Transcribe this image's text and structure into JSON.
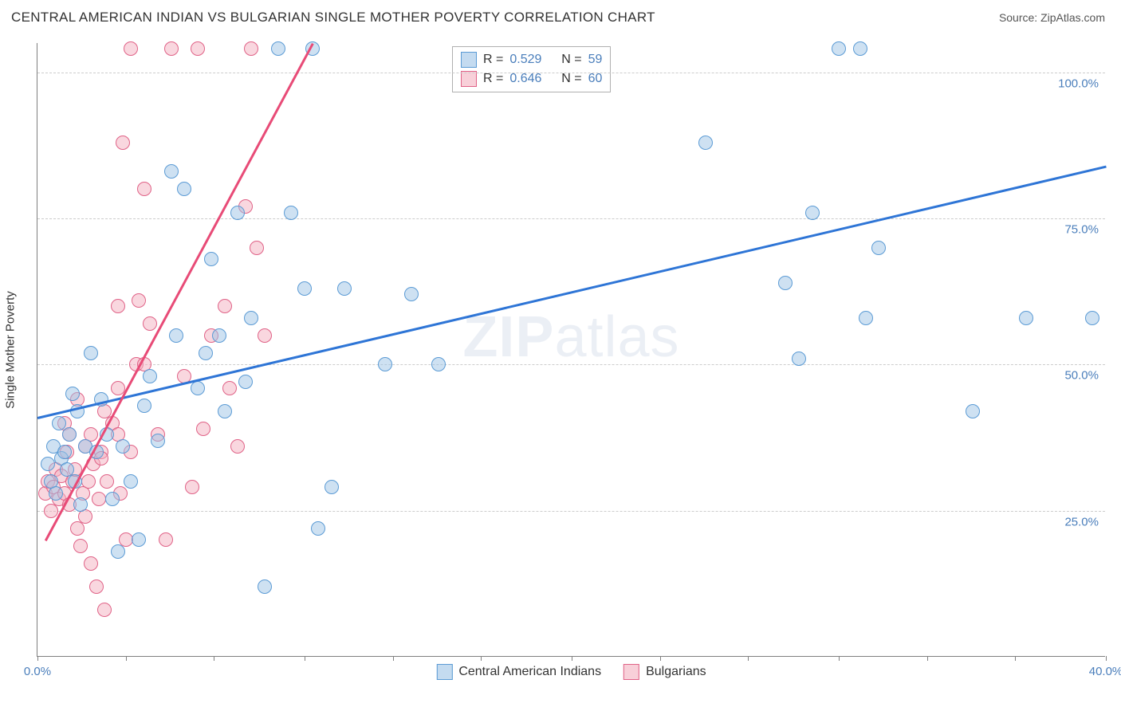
{
  "header": {
    "title": "CENTRAL AMERICAN INDIAN VS BULGARIAN SINGLE MOTHER POVERTY CORRELATION CHART",
    "source": "Source: ZipAtlas.com"
  },
  "watermark": {
    "zip": "ZIP",
    "atlas": "atlas"
  },
  "chart": {
    "type": "scatter",
    "ylabel": "Single Mother Poverty",
    "xlim": [
      0,
      40
    ],
    "ylim": [
      0,
      105
    ],
    "xtick_positions": [
      0,
      3.3,
      6.6,
      10,
      13.3,
      16.6,
      20,
      23.3,
      26.6,
      30,
      33.3,
      36.6,
      40
    ],
    "xtick_labels": {
      "0": "0.0%",
      "40": "40.0%"
    },
    "ytick_positions": [
      25,
      50,
      75,
      100
    ],
    "ytick_labels": [
      "25.0%",
      "50.0%",
      "75.0%",
      "100.0%"
    ],
    "grid_color": "#cccccc",
    "axis_color": "#808080",
    "background_color": "#ffffff",
    "label_fontsize": 15,
    "tick_color": "#4a7ebb",
    "series": {
      "blue": {
        "label": "Central American Indians",
        "fill": "rgba(157,195,230,0.5)",
        "stroke": "#5b9bd5",
        "R": "0.529",
        "N": "59",
        "trend": {
          "x1": 0,
          "y1": 41,
          "x2": 40,
          "y2": 84,
          "color": "#2e75d6"
        },
        "points": [
          [
            0.4,
            33
          ],
          [
            0.5,
            30
          ],
          [
            0.6,
            36
          ],
          [
            0.7,
            28
          ],
          [
            0.8,
            40
          ],
          [
            0.9,
            34
          ],
          [
            1.0,
            35
          ],
          [
            1.1,
            32
          ],
          [
            1.2,
            38
          ],
          [
            1.3,
            45
          ],
          [
            1.4,
            30
          ],
          [
            1.5,
            42
          ],
          [
            1.6,
            26
          ],
          [
            1.8,
            36
          ],
          [
            2.0,
            52
          ],
          [
            2.2,
            35
          ],
          [
            2.4,
            44
          ],
          [
            2.6,
            38
          ],
          [
            2.8,
            27
          ],
          [
            3.0,
            18
          ],
          [
            3.2,
            36
          ],
          [
            3.5,
            30
          ],
          [
            3.8,
            20
          ],
          [
            4.0,
            43
          ],
          [
            4.2,
            48
          ],
          [
            4.5,
            37
          ],
          [
            5.0,
            83
          ],
          [
            5.2,
            55
          ],
          [
            5.5,
            80
          ],
          [
            6.0,
            46
          ],
          [
            6.3,
            52
          ],
          [
            6.5,
            68
          ],
          [
            6.8,
            55
          ],
          [
            7.0,
            42
          ],
          [
            7.5,
            76
          ],
          [
            7.8,
            47
          ],
          [
            8.0,
            58
          ],
          [
            8.5,
            12
          ],
          [
            9.0,
            104
          ],
          [
            9.5,
            76
          ],
          [
            10.0,
            63
          ],
          [
            10.3,
            104
          ],
          [
            10.5,
            22
          ],
          [
            11.0,
            29
          ],
          [
            11.5,
            63
          ],
          [
            13.0,
            50
          ],
          [
            14.0,
            62
          ],
          [
            15.0,
            50
          ],
          [
            25.0,
            88
          ],
          [
            28.0,
            64
          ],
          [
            28.5,
            51
          ],
          [
            29.0,
            76
          ],
          [
            30.0,
            104
          ],
          [
            30.8,
            104
          ],
          [
            31.0,
            58
          ],
          [
            31.5,
            70
          ],
          [
            35.0,
            42
          ],
          [
            37.0,
            58
          ],
          [
            39.5,
            58
          ]
        ]
      },
      "pink": {
        "label": "Bulgarians",
        "fill": "rgba(244,176,191,0.5)",
        "stroke": "#e06287",
        "R": "0.646",
        "N": "60",
        "trend": {
          "x1": 0.3,
          "y1": 20,
          "x2": 10.3,
          "y2": 105,
          "color": "#e84b77"
        },
        "points": [
          [
            0.3,
            28
          ],
          [
            0.4,
            30
          ],
          [
            0.5,
            25
          ],
          [
            0.6,
            29
          ],
          [
            0.7,
            32
          ],
          [
            0.8,
            27
          ],
          [
            0.9,
            31
          ],
          [
            1.0,
            28
          ],
          [
            1.1,
            35
          ],
          [
            1.2,
            26
          ],
          [
            1.3,
            30
          ],
          [
            1.4,
            32
          ],
          [
            1.5,
            22
          ],
          [
            1.6,
            19
          ],
          [
            1.7,
            28
          ],
          [
            1.8,
            24
          ],
          [
            1.9,
            30
          ],
          [
            2.0,
            16
          ],
          [
            2.1,
            33
          ],
          [
            2.2,
            12
          ],
          [
            2.3,
            27
          ],
          [
            2.4,
            35
          ],
          [
            2.5,
            8
          ],
          [
            2.6,
            30
          ],
          [
            2.8,
            40
          ],
          [
            3.0,
            60
          ],
          [
            3.1,
            28
          ],
          [
            3.2,
            88
          ],
          [
            3.3,
            20
          ],
          [
            3.5,
            104
          ],
          [
            3.7,
            50
          ],
          [
            3.8,
            61
          ],
          [
            4.0,
            80
          ],
          [
            4.2,
            57
          ],
          [
            4.5,
            38
          ],
          [
            4.8,
            20
          ],
          [
            5.0,
            104
          ],
          [
            5.5,
            48
          ],
          [
            5.8,
            29
          ],
          [
            6.0,
            104
          ],
          [
            6.2,
            39
          ],
          [
            6.5,
            55
          ],
          [
            7.0,
            60
          ],
          [
            7.2,
            46
          ],
          [
            7.5,
            36
          ],
          [
            7.8,
            77
          ],
          [
            8.0,
            104
          ],
          [
            8.2,
            70
          ],
          [
            8.5,
            55
          ],
          [
            1.0,
            40
          ],
          [
            1.5,
            44
          ],
          [
            2.0,
            38
          ],
          [
            2.5,
            42
          ],
          [
            3.0,
            46
          ],
          [
            3.5,
            35
          ],
          [
            4.0,
            50
          ],
          [
            1.2,
            38
          ],
          [
            1.8,
            36
          ],
          [
            2.4,
            34
          ],
          [
            3.0,
            38
          ]
        ]
      }
    },
    "stats_labels": {
      "R": "R =",
      "N": "N ="
    }
  }
}
